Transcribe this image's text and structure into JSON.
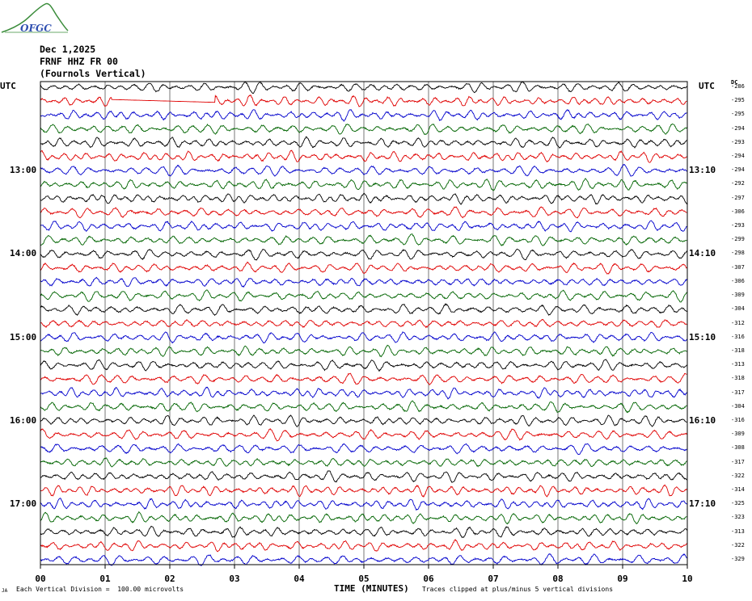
{
  "logo": {
    "text": "OFGC"
  },
  "header": {
    "date": "Dec 1,2025",
    "station": "FRNF HHZ FR 00",
    "location": "(Fournols Vertical)"
  },
  "utc_left": "UTC",
  "utc_right": "UTC",
  "dc_label": "DC",
  "footer": {
    "left_marker": "JA",
    "vertical_division": "Each Vertical Division =  100.00 microvolts",
    "xlabel": "TIME (MINUTES)",
    "clip_note": "Traces clipped at plus/minus 5 vertical divisions"
  },
  "chart_data": {
    "type": "line",
    "x_ticks": [
      "00",
      "01",
      "02",
      "03",
      "04",
      "05",
      "06",
      "07",
      "08",
      "09",
      "10"
    ],
    "xlim": [
      0,
      10
    ],
    "xlabel": "TIME (MINUTES)",
    "trace_colors": [
      "#000000",
      "#e00000",
      "#0000cc",
      "#006400"
    ],
    "left_time_labels": [
      {
        "trace": 6,
        "label": "13:00"
      },
      {
        "trace": 12,
        "label": "14:00"
      },
      {
        "trace": 18,
        "label": "15:00"
      },
      {
        "trace": 24,
        "label": "16:00"
      },
      {
        "trace": 30,
        "label": "17:00"
      }
    ],
    "right_time_labels": [
      {
        "trace": 6,
        "label": "13:10"
      },
      {
        "trace": 12,
        "label": "14:10"
      },
      {
        "trace": 18,
        "label": "15:10"
      },
      {
        "trace": 24,
        "label": "16:10"
      },
      {
        "trace": 30,
        "label": "17:10"
      }
    ],
    "dc_offsets": [
      "-286",
      "-295",
      "-295",
      "-294",
      "-293",
      "-294",
      "-294",
      "-292",
      "-297",
      "-306",
      "-293",
      "-299",
      "-298",
      "-307",
      "-306",
      "-309",
      "-304",
      "-312",
      "-316",
      "-318",
      "-313",
      "-318",
      "-317",
      "-304",
      "-316",
      "-309",
      "-308",
      "-317",
      "-322",
      "-314",
      "-325",
      "-323",
      "-313",
      "-322",
      "-329"
    ],
    "flat_segment": {
      "trace": 1,
      "start_min": 1.1,
      "end_min": 2.7
    }
  }
}
